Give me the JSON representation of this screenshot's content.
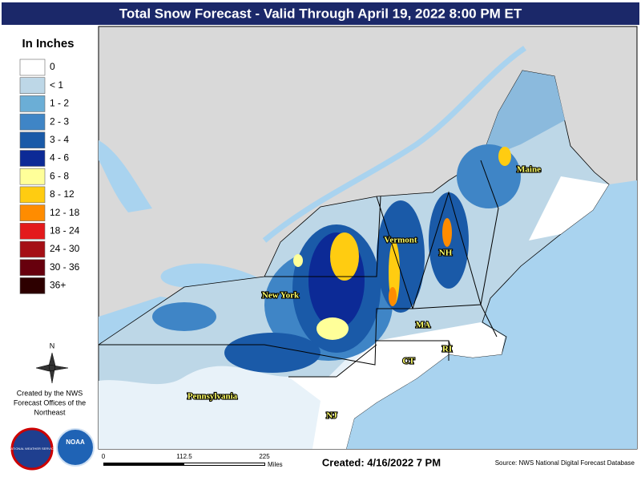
{
  "header": {
    "title": "Total Snow Forecast - Valid Through April 19, 2022 8:00 PM ET"
  },
  "legend": {
    "title": "In Inches",
    "items": [
      {
        "label": "0",
        "color": "#ffffff"
      },
      {
        "label": "< 1",
        "color": "#bdd7e7"
      },
      {
        "label": "1 - 2",
        "color": "#6baed6"
      },
      {
        "label": "2 - 3",
        "color": "#3f85c6"
      },
      {
        "label": "3 - 4",
        "color": "#1a5aa8"
      },
      {
        "label": "4 - 6",
        "color": "#0c2a96"
      },
      {
        "label": "6 - 8",
        "color": "#ffff99"
      },
      {
        "label": "8 - 12",
        "color": "#ffcc11"
      },
      {
        "label": "12 - 18",
        "color": "#ff8c00"
      },
      {
        "label": "18 - 24",
        "color": "#e31a1c"
      },
      {
        "label": "24 - 30",
        "color": "#a50f15"
      },
      {
        "label": "30 - 36",
        "color": "#67000d"
      },
      {
        "label": "36+",
        "color": "#2d0000"
      }
    ]
  },
  "compass": "N",
  "credit": {
    "line1": "Created by the NWS",
    "line2": "Forecast Offices of the",
    "line3": "Northeast"
  },
  "logos": {
    "nws": "NATIONAL WEATHER SERVICE",
    "noaa": "NOAA"
  },
  "states": {
    "new_york": "New York",
    "vermont": "Vermont",
    "nh": "NH",
    "maine": "Maine",
    "ma": "MA",
    "ct": "CT",
    "ri": "RI",
    "nj": "NJ",
    "pennsylvania": "Pennsylvania"
  },
  "scale": {
    "labels": [
      "0",
      "112.5",
      "225"
    ],
    "unit": "Miles"
  },
  "footer": {
    "created": "Created: 4/16/2022 7 PM",
    "source": "Source: NWS National Digital Forecast Database"
  }
}
